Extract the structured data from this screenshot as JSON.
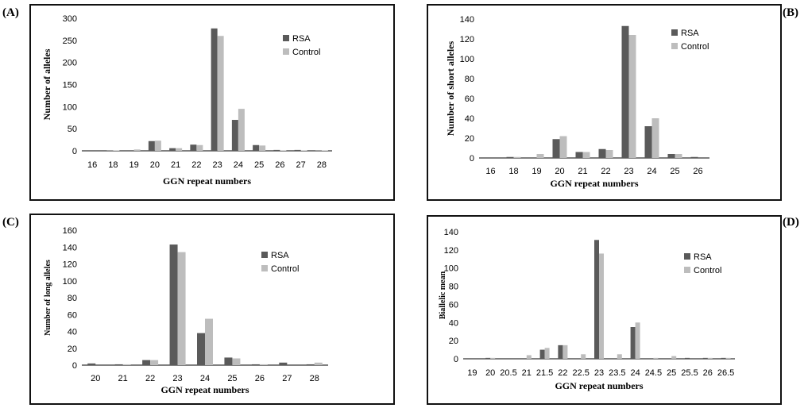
{
  "colors": {
    "rsa": "#5a5a5a",
    "control": "#bdbdbd",
    "axis": "#000000"
  },
  "panels": [
    {
      "label": "(A)",
      "ylabel": "Number of alleles",
      "xlabel": "GGN repeat numbers"
    },
    {
      "label": "(B)",
      "ylabel": "Number of short alleles",
      "xlabel": "GGN repeat numbers"
    },
    {
      "label": "(C)",
      "ylabel": "Number of long alleles",
      "xlabel": "GGN repeat numbers"
    },
    {
      "label": "(D)",
      "ylabel": "Biallelic mean",
      "xlabel": "GGN repeat numbers"
    }
  ],
  "chart_data": [
    {
      "type": "bar",
      "title": "",
      "xlabel": "GGN repeat numbers",
      "ylabel": "Number of alleles",
      "categories": [
        "16",
        "18",
        "19",
        "20",
        "21",
        "22",
        "23",
        "24",
        "25",
        "26",
        "27",
        "28"
      ],
      "series": [
        {
          "name": "RSA",
          "values": [
            0,
            1,
            0,
            22,
            6,
            14,
            277,
            70,
            13,
            2,
            2,
            1
          ]
        },
        {
          "name": "Control",
          "values": [
            0,
            1,
            3,
            23,
            6,
            13,
            260,
            95,
            12,
            1,
            1,
            1
          ]
        }
      ],
      "yticks": [
        0,
        50,
        100,
        150,
        200,
        250,
        300
      ],
      "ylim": [
        0,
        300
      ],
      "grid": false,
      "legend": "right"
    },
    {
      "type": "bar",
      "title": "",
      "xlabel": "GGN repeat numbers",
      "ylabel": "Number of short alleles",
      "categories": [
        "16",
        "18",
        "19",
        "20",
        "21",
        "22",
        "23",
        "24",
        "25",
        "26"
      ],
      "series": [
        {
          "name": "RSA",
          "values": [
            0,
            1,
            0,
            19,
            6,
            9,
            133,
            32,
            4,
            1
          ]
        },
        {
          "name": "Control",
          "values": [
            0,
            1,
            4,
            22,
            6,
            8,
            124,
            40,
            4,
            0
          ]
        }
      ],
      "yticks": [
        0,
        20,
        40,
        60,
        80,
        100,
        120,
        140
      ],
      "ylim": [
        0,
        140
      ],
      "grid": false,
      "legend": "right"
    },
    {
      "type": "bar",
      "title": "",
      "xlabel": "GGN repeat numbers",
      "ylabel": "Number of long alleles",
      "categories": [
        "20",
        "21",
        "22",
        "23",
        "24",
        "25",
        "26",
        "27",
        "28"
      ],
      "series": [
        {
          "name": "RSA",
          "values": [
            2,
            1,
            6,
            143,
            38,
            9,
            1,
            3,
            1
          ]
        },
        {
          "name": "Control",
          "values": [
            0,
            1,
            6,
            134,
            55,
            8,
            1,
            0,
            3
          ]
        }
      ],
      "yticks": [
        0,
        20,
        40,
        60,
        80,
        100,
        120,
        140,
        160
      ],
      "ylim": [
        0,
        160
      ],
      "grid": false,
      "legend": "right"
    },
    {
      "type": "bar",
      "title": "",
      "xlabel": "GGN repeat numbers",
      "ylabel": "Biallelic mean",
      "categories": [
        "19",
        "20",
        "20.5",
        "21",
        "21.5",
        "22",
        "22.5",
        "23",
        "23.5",
        "24",
        "24.5",
        "25",
        "25.5",
        "26",
        "26.5"
      ],
      "series": [
        {
          "name": "RSA",
          "values": [
            0,
            1,
            0,
            0,
            10,
            15,
            0,
            131,
            0,
            35,
            0,
            0,
            1,
            1,
            1
          ]
        },
        {
          "name": "Control",
          "values": [
            0,
            1,
            0,
            4,
            12,
            15,
            5,
            116,
            5,
            40,
            1,
            3,
            0,
            1,
            1
          ]
        }
      ],
      "yticks": [
        0,
        20,
        40,
        60,
        80,
        100,
        120,
        140
      ],
      "ylim": [
        0,
        140
      ],
      "grid": false,
      "legend": "right"
    }
  ]
}
